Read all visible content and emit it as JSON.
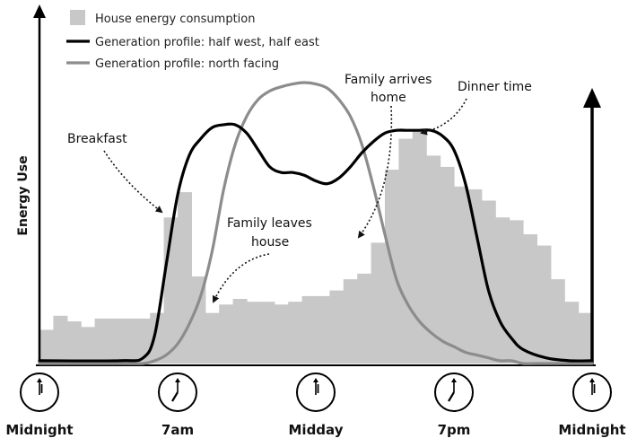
{
  "chart_data": {
    "type": "bar",
    "ylabel": "Energy Use",
    "x_ticks": [
      "Midnight",
      "7am",
      "Midday",
      "7pm",
      "Midnight"
    ],
    "legend": {
      "placement": "top-left",
      "items": [
        {
          "label": "House energy consumption",
          "kind": "bar",
          "color": "#c8c8c8"
        },
        {
          "label": "Generation profile: half west, half east",
          "kind": "line",
          "color": "#000000"
        },
        {
          "label": "Generation profile: north facing",
          "kind": "line",
          "color": "#8c8c8c"
        }
      ]
    },
    "x_range_hours": [
      0,
      24
    ],
    "y_range": [
      0,
      100
    ],
    "bar_hours": [
      0,
      0.6,
      1.2,
      1.8,
      2.4,
      3.0,
      3.6,
      4.2,
      4.8,
      5.4,
      6.0,
      6.6,
      7.2,
      7.8,
      8.4,
      9.0,
      9.6,
      10.2,
      10.8,
      11.4,
      12.0,
      12.6,
      13.2,
      13.8,
      14.4,
      15.0,
      15.6,
      16.2,
      16.8,
      17.4,
      18.0,
      18.6,
      19.2,
      19.8,
      20.4,
      21.0,
      21.6,
      22.2,
      22.8,
      23.4
    ],
    "bars": [
      12,
      17,
      15,
      13,
      16,
      16,
      16,
      16,
      18,
      52,
      61,
      31,
      18,
      21,
      23,
      22,
      22,
      21,
      22,
      24,
      24,
      26,
      30,
      32,
      43,
      69,
      80,
      83,
      74,
      70,
      63,
      62,
      58,
      52,
      51,
      46,
      42,
      30,
      22,
      18
    ],
    "series": [
      {
        "name": "Generation profile: half west, half east",
        "color": "#000000",
        "x": [
          0,
          3.5,
          4.5,
          5.0,
          5.5,
          6.0,
          6.5,
          7.0,
          7.5,
          8.0,
          8.5,
          9.0,
          9.5,
          10.0,
          10.5,
          11.0,
          11.5,
          12.0,
          12.5,
          13.0,
          13.5,
          14.0,
          14.5,
          15.0,
          15.5,
          16.0,
          16.5,
          17.0,
          17.5,
          18.0,
          18.5,
          19.0,
          19.5,
          20.0,
          20.5,
          21.0,
          22.0,
          23.0,
          24.0
        ],
        "y": [
          1,
          1,
          2,
          10,
          35,
          60,
          74,
          80,
          84,
          85,
          85,
          82,
          76,
          70,
          68,
          68,
          67,
          65,
          64,
          66,
          70,
          75,
          79,
          82,
          83,
          83,
          83,
          83,
          81,
          76,
          64,
          45,
          26,
          15,
          9,
          5,
          2,
          1,
          1
        ]
      },
      {
        "name": "Generation profile: north facing",
        "color": "#8c8c8c",
        "x": [
          0,
          3.5,
          4.5,
          5.0,
          5.5,
          6.0,
          6.5,
          7.0,
          7.5,
          8.0,
          8.5,
          9.0,
          9.5,
          10.0,
          10.5,
          11.0,
          11.5,
          12.0,
          12.5,
          13.0,
          13.5,
          14.0,
          14.5,
          15.0,
          15.5,
          16.0,
          16.5,
          17.0,
          17.5,
          18.0,
          18.5,
          19.0,
          19.5,
          20.0,
          20.5,
          21.0,
          21.5,
          22.0,
          24.0
        ],
        "y": [
          0,
          0,
          0,
          1,
          3,
          7,
          14,
          24,
          40,
          62,
          78,
          88,
          94,
          97,
          98.5,
          99.5,
          100,
          99.5,
          98,
          94,
          88,
          78,
          63,
          46,
          30,
          21,
          15,
          11,
          8,
          6,
          4,
          3,
          2,
          1,
          1,
          0,
          0,
          0,
          0
        ]
      }
    ],
    "annotations": [
      {
        "lines": [
          "Breakfast"
        ],
        "points_to": "half west, half east curve at 7am"
      },
      {
        "lines": [
          "Family leaves",
          "house"
        ],
        "points_to": "drop in consumption after 7am"
      },
      {
        "lines": [
          "Family arrives",
          "home"
        ],
        "points_to": "rise in consumption in afternoon"
      },
      {
        "lines": [
          "Dinner time"
        ],
        "points_to": "consumption peak in evening"
      }
    ]
  }
}
